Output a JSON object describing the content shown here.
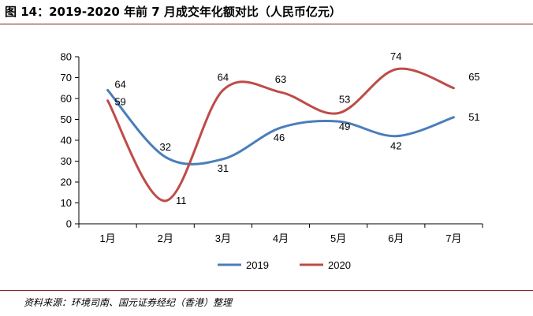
{
  "title": "图 14：2019-2020 年前 7 月成交年化额对比（人民币亿元）",
  "source": "资料来源：环境司南、国元证券经纪（香港）整理",
  "chart_data": {
    "type": "line",
    "title": "图 14：2019-2020 年前 7 月成交年化额对比（人民币亿元）",
    "categories": [
      "1月",
      "2月",
      "3月",
      "4月",
      "5月",
      "6月",
      "7月"
    ],
    "series": [
      {
        "name": "2019",
        "values": [
          64,
          32,
          31,
          46,
          49,
          42,
          51
        ],
        "color": "#4a7ebb"
      },
      {
        "name": "2020",
        "values": [
          59,
          11,
          64,
          63,
          53,
          74,
          65
        ],
        "color": "#be4b48"
      }
    ],
    "ylim": [
      0,
      80
    ],
    "yticks": [
      0,
      10,
      20,
      30,
      40,
      50,
      60,
      70,
      80
    ],
    "xlabel": "",
    "ylabel": "",
    "grid": false,
    "smooth": true,
    "legend": "bottom-center"
  }
}
